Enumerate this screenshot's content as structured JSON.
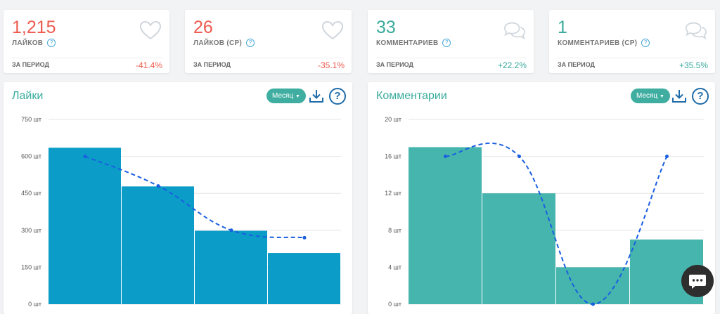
{
  "stats": [
    {
      "value": "1,215",
      "label": "ЛАЙКОВ",
      "period": "ЗА ПЕРИОД",
      "change": "-41.4%",
      "icon": "heart-icon"
    },
    {
      "value": "26",
      "label": "ЛАЙКОВ (СР)",
      "period": "ЗА ПЕРИОД",
      "change": "-35.1%",
      "icon": "heart-icon"
    },
    {
      "value": "33",
      "label": "КОММЕНТАРИЕВ",
      "period": "ЗА ПЕРИОД",
      "change": "+22.2%",
      "icon": "comments-icon"
    },
    {
      "value": "1",
      "label": "КОММЕНТАРИЕВ (СР)",
      "period": "ЗА ПЕРИОД",
      "change": "+35.5%",
      "icon": "comments-icon"
    }
  ],
  "help_glyph": "?",
  "colors": {
    "red": "#ee5b4f",
    "teal": "#39ab9c",
    "likes_bar": "#0b9dc8",
    "comments_bar": "#46b5ad",
    "trend": "#1a5fe0"
  },
  "chart_data": [
    {
      "type": "bar",
      "title": "Лайки",
      "period_button": "Месяц",
      "y_ticks": [
        "0 шт",
        "150 шт",
        "300 шт",
        "450 шт",
        "600 шт",
        "750 шт"
      ],
      "ylim": [
        0,
        750
      ],
      "values": [
        635,
        478,
        298,
        208
      ],
      "trend": [
        600,
        480,
        300,
        270
      ],
      "grid": true
    },
    {
      "type": "bar",
      "title": "Комментарии",
      "period_button": "Месяц",
      "y_ticks": [
        "0 шт",
        "4 шт",
        "8 шт",
        "12 шт",
        "16 шт",
        "20 шт"
      ],
      "ylim": [
        0,
        20
      ],
      "values": [
        17,
        12,
        4,
        7
      ],
      "trend": [
        16,
        16,
        0,
        16
      ],
      "grid": true
    }
  ]
}
